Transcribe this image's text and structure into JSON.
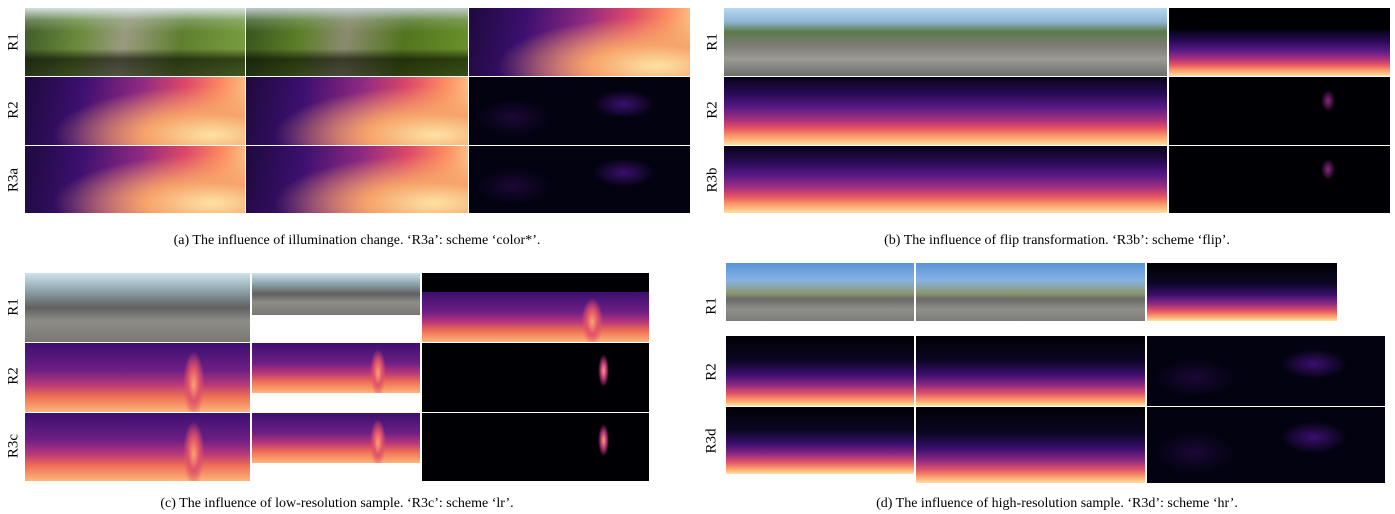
{
  "panels": {
    "a": {
      "rows": [
        "R1",
        "R2",
        "R3a"
      ],
      "caption": "(a) The influence of illumination change. ‘R3a’: scheme ‘color*’."
    },
    "b": {
      "rows": [
        "R1",
        "R2",
        "R3b"
      ],
      "caption": "(b) The influence of flip transformation. ‘R3b’: scheme ‘flip’."
    },
    "c": {
      "rows": [
        "R1",
        "R2",
        "R3c"
      ],
      "caption": "(c) The influence of low-resolution sample. ‘R3c’: scheme ‘lr’."
    },
    "d": {
      "rows": [
        "R1",
        "R2",
        "R3d"
      ],
      "caption": "(d) The influence of high-resolution sample. ‘R3d’: scheme ‘hr’."
    }
  }
}
